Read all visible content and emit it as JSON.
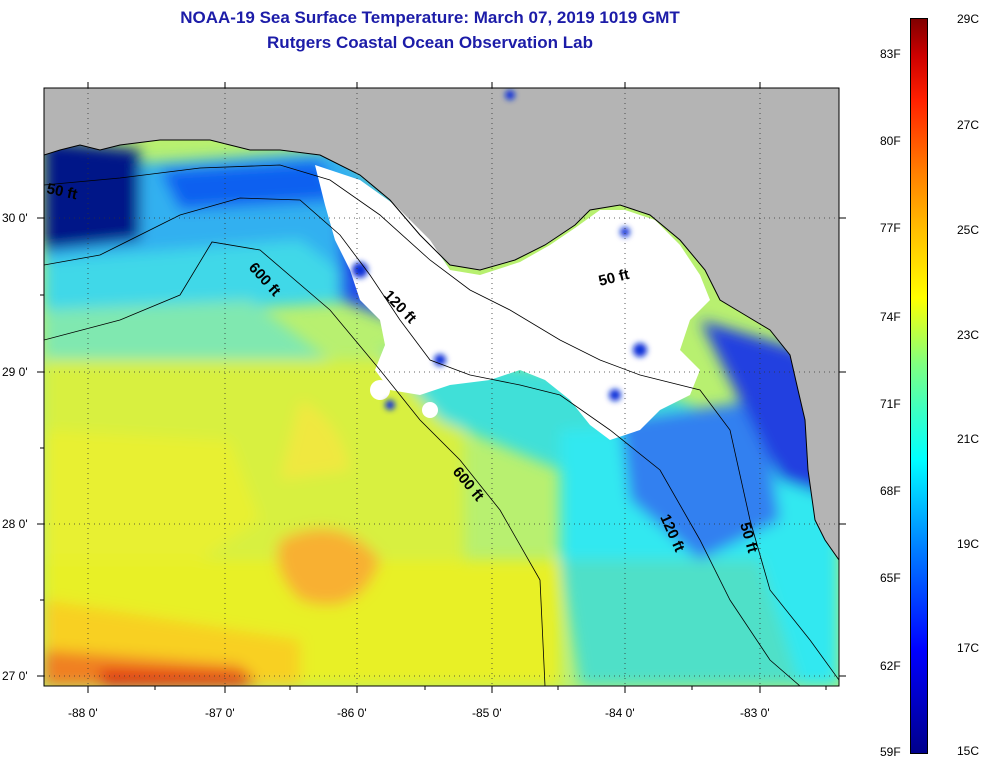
{
  "title_line1": "NOAA-19 Sea Surface Temperature:  March 07, 2019 1019 GMT",
  "title_line2": "Rutgers Coastal Ocean Observation Lab",
  "lat_labels": [
    "30 0'",
    "29 0'",
    "28 0'",
    "27 0'"
  ],
  "lon_labels": [
    "-88 0'",
    "-87 0'",
    "-86 0'",
    "-85 0'",
    "-84 0'",
    "-83 0'"
  ],
  "contours": {
    "c600a": "600 ft",
    "c600b": "600 ft",
    "c120a": "120 ft",
    "c120b": "120 ft",
    "c50a": "50 ft",
    "c50b": "50 ft",
    "c50c": "50 ft"
  },
  "colorbar": {
    "fahrenheit": [
      "83F",
      "80F",
      "77F",
      "74F",
      "71F",
      "68F",
      "65F",
      "62F",
      "59F"
    ],
    "celsius": [
      "29C",
      "27C",
      "25C",
      "23C",
      "21C",
      "19C",
      "17C",
      "15C"
    ]
  },
  "colors": {
    "land": "#b4b4b4",
    "cloud": "#ffffff",
    "title": "#1c1ca8"
  }
}
